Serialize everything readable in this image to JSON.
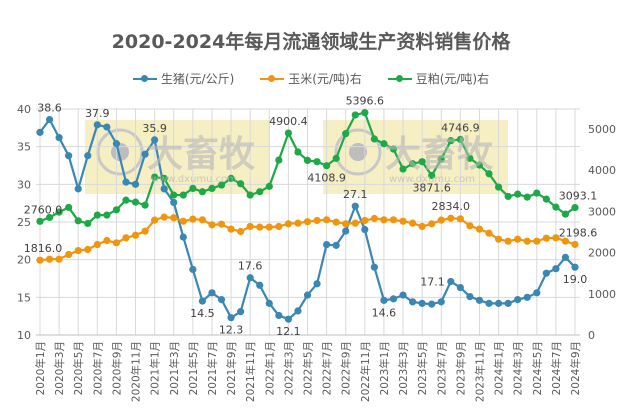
{
  "chart_data": {
    "type": "line",
    "title": "2020-2024年每月流通领域生产资料销售价格",
    "categories": [
      "2020年1月",
      "2020年2月",
      "2020年3月",
      "2020年4月",
      "2020年5月",
      "2020年6月",
      "2020年7月",
      "2020年8月",
      "2020年9月",
      "2020年10月",
      "2020年11月",
      "2020年12月",
      "2021年1月",
      "2021年2月",
      "2021年3月",
      "2021年4月",
      "2021年5月",
      "2021年6月",
      "2021年7月",
      "2021年8月",
      "2021年9月",
      "2021年10月",
      "2021年11月",
      "2021年12月",
      "2022年1月",
      "2022年2月",
      "2022年3月",
      "2022年4月",
      "2022年5月",
      "2022年6月",
      "2022年7月",
      "2022年8月",
      "2022年9月",
      "2022年10月",
      "2022年11月",
      "2022年12月",
      "2023年1月",
      "2023年2月",
      "2023年3月",
      "2023年4月",
      "2023年5月",
      "2023年6月",
      "2023年7月",
      "2023年8月",
      "2023年9月",
      "2023年10月",
      "2023年11月",
      "2023年12月",
      "2024年1月",
      "2024年2月",
      "2024年3月",
      "2024年4月",
      "2024年5月",
      "2024年6月",
      "2024年7月",
      "2024年8月",
      "2024年9月"
    ],
    "tick_labels": [
      "2020年1月",
      "2020年3月",
      "2020年5月",
      "2020年7月",
      "2020年9月",
      "2020年11月",
      "2021年1月",
      "2021年3月",
      "2021年5月",
      "2021年7月",
      "2021年9月",
      "2021年11月",
      "2022年1月",
      "2022年3月",
      "2022年5月",
      "2022年7月",
      "2022年9月",
      "2022年11月",
      "2023年1月",
      "2023年3月",
      "2023年5月",
      "2023年7月",
      "2023年9月",
      "2023年11月",
      "2024年1月",
      "2024年3月",
      "2024年5月",
      "2024年7月",
      "2024年9月"
    ],
    "y_left": {
      "range": [
        10,
        40
      ],
      "ticks": [
        "10",
        "15",
        "20",
        "25",
        "30",
        "35",
        "40"
      ]
    },
    "y_right": {
      "range": [
        0,
        5000
      ],
      "ticks": [
        "0",
        "1000",
        "2000",
        "3000",
        "4000",
        "5000"
      ]
    },
    "grid": true,
    "legend_position": "top",
    "series": [
      {
        "name": "生猪(元/公斤)",
        "axis": "left",
        "color": "#3b87b3",
        "values": [
          36.9,
          38.6,
          36.2,
          33.8,
          29.4,
          33.8,
          37.9,
          37.6,
          35.4,
          30.3,
          30.0,
          34.0,
          35.9,
          29.4,
          27.6,
          23.0,
          18.7,
          14.5,
          15.6,
          14.7,
          12.3,
          13.1,
          17.6,
          16.6,
          14.2,
          12.6,
          12.1,
          13.2,
          15.3,
          16.8,
          22.0,
          21.9,
          23.8,
          27.1,
          24.0,
          19.0,
          14.6,
          14.8,
          15.3,
          14.4,
          14.2,
          14.1,
          14.4,
          17.1,
          16.3,
          15.1,
          14.6,
          14.2,
          14.2,
          14.2,
          14.7,
          15.0,
          15.6,
          18.2,
          18.8,
          20.3,
          19.0
        ],
        "labels": [
          {
            "i": 1,
            "text": "38.6",
            "pos": "above"
          },
          {
            "i": 6,
            "text": "37.9",
            "pos": "above"
          },
          {
            "i": 12,
            "text": "35.9",
            "pos": "above"
          },
          {
            "i": 17,
            "text": "14.5",
            "pos": "below"
          },
          {
            "i": 20,
            "text": "12.3",
            "pos": "below"
          },
          {
            "i": 22,
            "text": "17.6",
            "pos": "above"
          },
          {
            "i": 26,
            "text": "12.1",
            "pos": "below"
          },
          {
            "i": 33,
            "text": "27.1",
            "pos": "above"
          },
          {
            "i": 36,
            "text": "14.6",
            "pos": "below"
          },
          {
            "i": 43,
            "text": "17.1",
            "pos": "left"
          },
          {
            "i": 56,
            "text": "19.0",
            "pos": "below"
          }
        ]
      },
      {
        "name": "玉米(元/吨)右",
        "axis": "right",
        "color": "#f0950f",
        "values": [
          1816,
          1840,
          1840,
          1953,
          2050,
          2075,
          2196,
          2293,
          2237,
          2358,
          2423,
          2520,
          2788,
          2861,
          2845,
          2763,
          2812,
          2796,
          2674,
          2690,
          2569,
          2512,
          2634,
          2618,
          2618,
          2634,
          2699,
          2715,
          2750,
          2780,
          2796,
          2739,
          2699,
          2715,
          2780,
          2828,
          2796,
          2796,
          2763,
          2715,
          2634,
          2699,
          2788,
          2834,
          2820,
          2650,
          2569,
          2472,
          2326,
          2277,
          2326,
          2277,
          2277,
          2350,
          2358,
          2277,
          2198.6
        ],
        "labels": [
          {
            "i": 0,
            "text": "1816.0",
            "pos": "above"
          },
          {
            "i": 43,
            "text": "2834.0",
            "pos": "above"
          },
          {
            "i": 56,
            "text": "2198.6",
            "pos": "above"
          }
        ]
      },
      {
        "name": "豆粕(元/吨)右",
        "axis": "right",
        "color": "#1ea847",
        "values": [
          2760,
          2853,
          2982,
          3096,
          2772,
          2707,
          2910,
          2910,
          3039,
          3274,
          3225,
          3152,
          3833,
          3801,
          3396,
          3396,
          3558,
          3477,
          3558,
          3639,
          3801,
          3671,
          3396,
          3477,
          3607,
          4246,
          4900.4,
          4441,
          4238,
          4206,
          4108.9,
          4287,
          4887,
          5341,
          5396.6,
          4757,
          4644,
          4514,
          4028,
          4157,
          4206,
          3871.6,
          4271,
          4717,
          4746.9,
          4287,
          4125,
          3914,
          3590,
          3363,
          3420,
          3347,
          3444,
          3298,
          3104,
          2934,
          3093.1
        ],
        "labels": [
          {
            "i": 0,
            "text": "2760.0",
            "pos": "above"
          },
          {
            "i": 26,
            "text": "4900.4",
            "pos": "above"
          },
          {
            "i": 30,
            "text": "4108.9",
            "pos": "below"
          },
          {
            "i": 34,
            "text": "5396.6",
            "pos": "above"
          },
          {
            "i": 41,
            "text": "3871.6",
            "pos": "below"
          },
          {
            "i": 44,
            "text": "4746.9",
            "pos": "above"
          },
          {
            "i": 56,
            "text": "3093.1",
            "pos": "above"
          }
        ]
      }
    ]
  },
  "watermark": {
    "brand": "大畜牧",
    "url": "www.dxumu.com"
  }
}
